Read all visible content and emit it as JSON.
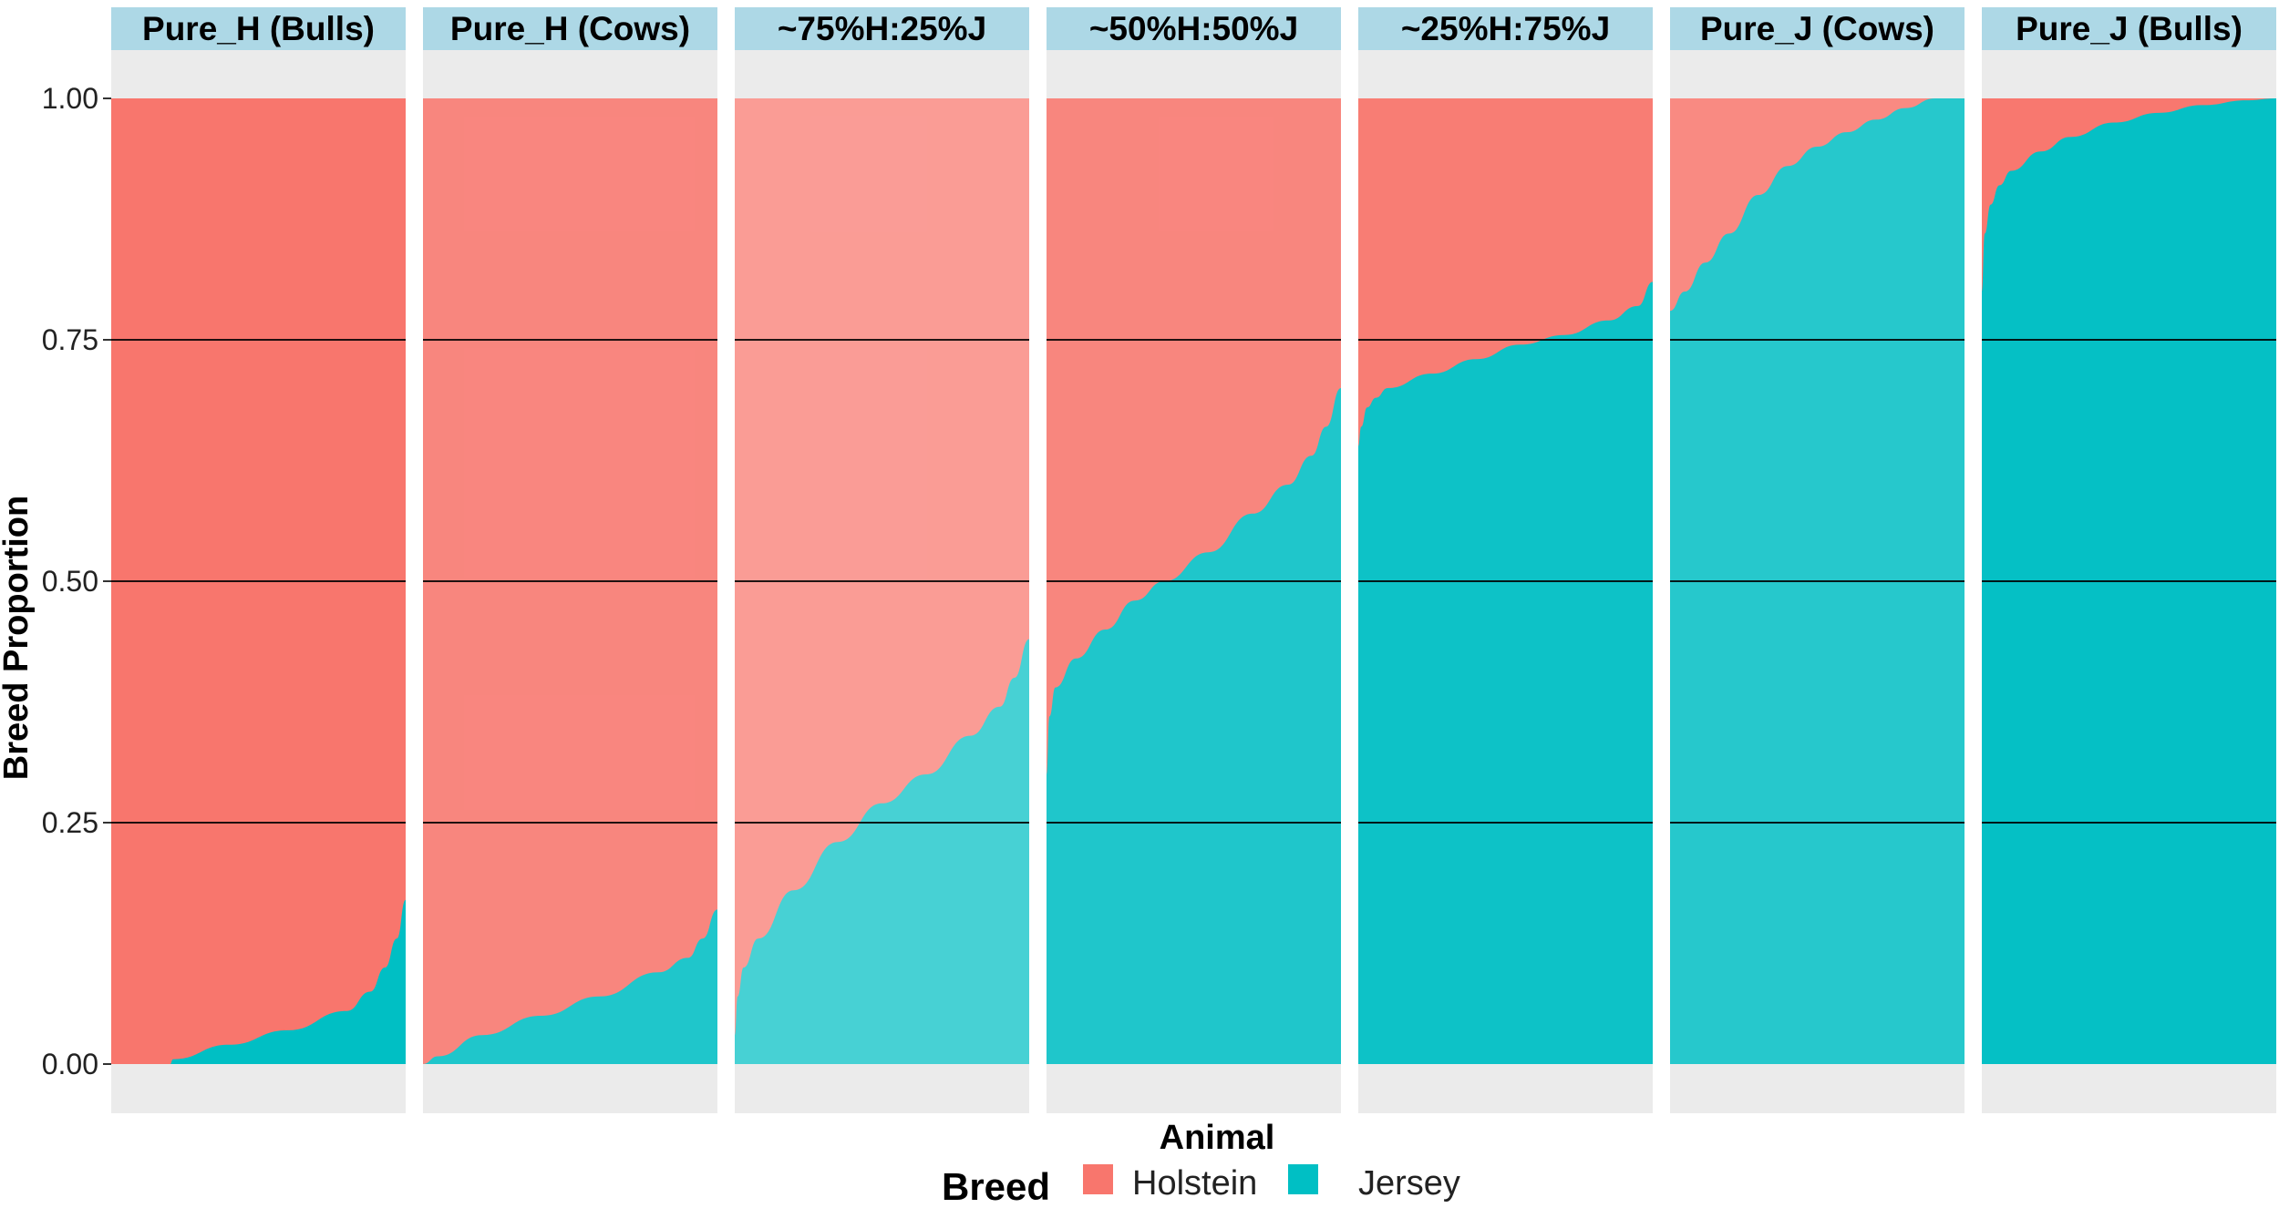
{
  "chart_data": {
    "type": "area",
    "stacked": true,
    "xlabel": "Animal",
    "ylabel": "Breed Proportion",
    "ylim": [
      0,
      1
    ],
    "yticks": [
      "0.00",
      "0.25",
      "0.50",
      "0.75",
      "1.00"
    ],
    "grid": "horizontal major",
    "legend": {
      "title": "Breed",
      "position": "bottom",
      "items": [
        {
          "label": "Holstein",
          "color": "#F8766D"
        },
        {
          "label": "Jersey",
          "color": "#00BFC4"
        }
      ]
    },
    "panels": [
      {
        "label": "Pure_H (Bulls)",
        "jersey_x": [
          0,
          0.2,
          0.21,
          0.4,
          0.6,
          0.8,
          0.88,
          0.93,
          0.97,
          1.0
        ],
        "jersey_y": [
          0,
          0,
          0.005,
          0.02,
          0.035,
          0.055,
          0.075,
          0.1,
          0.13,
          0.17
        ]
      },
      {
        "label": "Pure_H (Cows)",
        "jersey_x": [
          0,
          0.05,
          0.2,
          0.4,
          0.6,
          0.8,
          0.9,
          0.95,
          1.0
        ],
        "jersey_y": [
          0,
          0.008,
          0.03,
          0.05,
          0.07,
          0.095,
          0.11,
          0.13,
          0.16
        ]
      },
      {
        "label": "~75%H:25%J",
        "jersey_x": [
          0,
          0.01,
          0.03,
          0.08,
          0.2,
          0.35,
          0.5,
          0.65,
          0.8,
          0.9,
          0.95,
          1.0
        ],
        "jersey_y": [
          0.03,
          0.07,
          0.1,
          0.13,
          0.18,
          0.23,
          0.27,
          0.3,
          0.34,
          0.37,
          0.4,
          0.44
        ]
      },
      {
        "label": "~50%H:50%J",
        "jersey_x": [
          0,
          0.01,
          0.03,
          0.1,
          0.2,
          0.3,
          0.4,
          0.55,
          0.7,
          0.82,
          0.9,
          0.95,
          1.0
        ],
        "jersey_y": [
          0.3,
          0.36,
          0.39,
          0.42,
          0.45,
          0.48,
          0.5,
          0.53,
          0.57,
          0.6,
          0.63,
          0.66,
          0.7
        ]
      },
      {
        "label": "~25%H:75%J",
        "jersey_x": [
          0,
          0.01,
          0.03,
          0.06,
          0.1,
          0.25,
          0.4,
          0.55,
          0.7,
          0.85,
          0.95,
          1.0
        ],
        "jersey_y": [
          0.64,
          0.66,
          0.68,
          0.69,
          0.7,
          0.715,
          0.73,
          0.745,
          0.755,
          0.77,
          0.785,
          0.81
        ]
      },
      {
        "label": "Pure_J (Cows)",
        "jersey_x": [
          0,
          0.05,
          0.12,
          0.2,
          0.3,
          0.4,
          0.5,
          0.6,
          0.7,
          0.8,
          0.9,
          1.0
        ],
        "jersey_y": [
          0.78,
          0.8,
          0.83,
          0.86,
          0.9,
          0.93,
          0.95,
          0.965,
          0.978,
          0.99,
          1.0,
          1.0
        ]
      },
      {
        "label": "Pure_J (Bulls)",
        "jersey_x": [
          0,
          0.01,
          0.03,
          0.06,
          0.1,
          0.2,
          0.3,
          0.45,
          0.6,
          0.75,
          0.9,
          1.0
        ],
        "jersey_y": [
          0.8,
          0.86,
          0.89,
          0.91,
          0.925,
          0.945,
          0.96,
          0.975,
          0.985,
          0.993,
          0.998,
          1.0
        ]
      }
    ]
  }
}
